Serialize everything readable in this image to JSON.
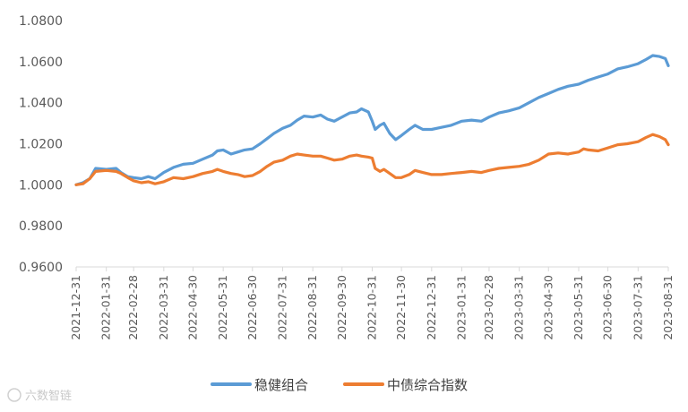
{
  "chart_data": {
    "type": "line",
    "title": "",
    "xlabel": "",
    "ylabel": "",
    "ylim": [
      0.96,
      1.08
    ],
    "yticks": [
      "1.0800",
      "1.0600",
      "1.0400",
      "1.0200",
      "1.0000",
      "0.9800",
      "0.9600"
    ],
    "x_tick_labels": [
      "2021-12-31",
      "2022-01-31",
      "2022-02-28",
      "2022-03-31",
      "2022-04-30",
      "2022-05-31",
      "2022-06-30",
      "2022-07-31",
      "2022-08-31",
      "2022-09-30",
      "2022-10-31",
      "2022-11-30",
      "2022-12-31",
      "2023-01-31",
      "2023-02-28",
      "2023-03-31",
      "2023-04-30",
      "2023-05-31",
      "2023-06-30",
      "2023-07-31",
      "2023-08-31"
    ],
    "legend_position": "bottom",
    "grid": false,
    "series": [
      {
        "name": "稳健组合",
        "color": "#5B9BD5",
        "points": [
          [
            "2021-12-31",
            1.0
          ],
          [
            "2022-01-07",
            1.001
          ],
          [
            "2022-01-14",
            1.003
          ],
          [
            "2022-01-20",
            1.008
          ],
          [
            "2022-01-31",
            1.0075
          ],
          [
            "2022-02-10",
            1.008
          ],
          [
            "2022-02-15",
            1.006
          ],
          [
            "2022-02-22",
            1.004
          ],
          [
            "2022-02-28",
            1.0035
          ],
          [
            "2022-03-08",
            1.003
          ],
          [
            "2022-03-15",
            1.004
          ],
          [
            "2022-03-22",
            1.003
          ],
          [
            "2022-03-31",
            1.006
          ],
          [
            "2022-04-10",
            1.0085
          ],
          [
            "2022-04-20",
            1.01
          ],
          [
            "2022-04-30",
            1.0105
          ],
          [
            "2022-05-10",
            1.0125
          ],
          [
            "2022-05-20",
            1.0145
          ],
          [
            "2022-05-25",
            1.0165
          ],
          [
            "2022-05-31",
            1.017
          ],
          [
            "2022-06-08",
            1.015
          ],
          [
            "2022-06-15",
            1.016
          ],
          [
            "2022-06-22",
            1.017
          ],
          [
            "2022-06-30",
            1.0175
          ],
          [
            "2022-07-08",
            1.02
          ],
          [
            "2022-07-15",
            1.0225
          ],
          [
            "2022-07-22",
            1.025
          ],
          [
            "2022-07-31",
            1.0275
          ],
          [
            "2022-08-08",
            1.029
          ],
          [
            "2022-08-15",
            1.0315
          ],
          [
            "2022-08-22",
            1.0335
          ],
          [
            "2022-08-31",
            1.033
          ],
          [
            "2022-09-08",
            1.034
          ],
          [
            "2022-09-15",
            1.032
          ],
          [
            "2022-09-22",
            1.031
          ],
          [
            "2022-09-30",
            1.033
          ],
          [
            "2022-10-08",
            1.035
          ],
          [
            "2022-10-15",
            1.0355
          ],
          [
            "2022-10-20",
            1.037
          ],
          [
            "2022-10-27",
            1.0355
          ],
          [
            "2022-10-31",
            1.031
          ],
          [
            "2022-11-03",
            1.027
          ],
          [
            "2022-11-08",
            1.029
          ],
          [
            "2022-11-12",
            1.03
          ],
          [
            "2022-11-18",
            1.025
          ],
          [
            "2022-11-24",
            1.022
          ],
          [
            "2022-11-30",
            1.024
          ],
          [
            "2022-12-08",
            1.027
          ],
          [
            "2022-12-14",
            1.029
          ],
          [
            "2022-12-22",
            1.027
          ],
          [
            "2022-12-31",
            1.027
          ],
          [
            "2023-01-10",
            1.028
          ],
          [
            "2023-01-20",
            1.029
          ],
          [
            "2023-01-31",
            1.031
          ],
          [
            "2023-02-10",
            1.0315
          ],
          [
            "2023-02-20",
            1.031
          ],
          [
            "2023-02-28",
            1.033
          ],
          [
            "2023-03-10",
            1.035
          ],
          [
            "2023-03-20",
            1.036
          ],
          [
            "2023-03-31",
            1.0375
          ],
          [
            "2023-04-10",
            1.04
          ],
          [
            "2023-04-20",
            1.0425
          ],
          [
            "2023-04-30",
            1.0445
          ],
          [
            "2023-05-10",
            1.0465
          ],
          [
            "2023-05-20",
            1.048
          ],
          [
            "2023-05-31",
            1.049
          ],
          [
            "2023-06-10",
            1.051
          ],
          [
            "2023-06-20",
            1.0525
          ],
          [
            "2023-06-30",
            1.054
          ],
          [
            "2023-07-10",
            1.0565
          ],
          [
            "2023-07-20",
            1.0575
          ],
          [
            "2023-07-31",
            1.059
          ],
          [
            "2023-08-08",
            1.061
          ],
          [
            "2023-08-15",
            1.063
          ],
          [
            "2023-08-22",
            1.0625
          ],
          [
            "2023-08-28",
            1.0615
          ],
          [
            "2023-08-31",
            1.058
          ]
        ]
      },
      {
        "name": "中债综合指数",
        "color": "#ED7D31",
        "points": [
          [
            "2021-12-31",
            1.0
          ],
          [
            "2022-01-07",
            1.0005
          ],
          [
            "2022-01-14",
            1.003
          ],
          [
            "2022-01-20",
            1.0065
          ],
          [
            "2022-01-31",
            1.007
          ],
          [
            "2022-02-10",
            1.0065
          ],
          [
            "2022-02-15",
            1.0055
          ],
          [
            "2022-02-22",
            1.0035
          ],
          [
            "2022-02-28",
            1.002
          ],
          [
            "2022-03-08",
            1.001
          ],
          [
            "2022-03-15",
            1.0015
          ],
          [
            "2022-03-22",
            1.0005
          ],
          [
            "2022-03-31",
            1.0015
          ],
          [
            "2022-04-10",
            1.0035
          ],
          [
            "2022-04-20",
            1.003
          ],
          [
            "2022-04-30",
            1.004
          ],
          [
            "2022-05-10",
            1.0055
          ],
          [
            "2022-05-20",
            1.0065
          ],
          [
            "2022-05-25",
            1.0075
          ],
          [
            "2022-05-31",
            1.0065
          ],
          [
            "2022-06-08",
            1.0055
          ],
          [
            "2022-06-15",
            1.005
          ],
          [
            "2022-06-22",
            1.004
          ],
          [
            "2022-06-30",
            1.0045
          ],
          [
            "2022-07-08",
            1.0065
          ],
          [
            "2022-07-15",
            1.009
          ],
          [
            "2022-07-22",
            1.011
          ],
          [
            "2022-07-31",
            1.012
          ],
          [
            "2022-08-08",
            1.014
          ],
          [
            "2022-08-15",
            1.015
          ],
          [
            "2022-08-22",
            1.0145
          ],
          [
            "2022-08-31",
            1.014
          ],
          [
            "2022-09-08",
            1.014
          ],
          [
            "2022-09-15",
            1.013
          ],
          [
            "2022-09-22",
            1.012
          ],
          [
            "2022-09-30",
            1.0125
          ],
          [
            "2022-10-08",
            1.014
          ],
          [
            "2022-10-15",
            1.0145
          ],
          [
            "2022-10-20",
            1.014
          ],
          [
            "2022-10-27",
            1.0135
          ],
          [
            "2022-10-31",
            1.013
          ],
          [
            "2022-11-03",
            1.008
          ],
          [
            "2022-11-08",
            1.0065
          ],
          [
            "2022-11-12",
            1.0075
          ],
          [
            "2022-11-18",
            1.0055
          ],
          [
            "2022-11-24",
            1.0035
          ],
          [
            "2022-11-30",
            1.0035
          ],
          [
            "2022-12-08",
            1.005
          ],
          [
            "2022-12-14",
            1.007
          ],
          [
            "2022-12-22",
            1.006
          ],
          [
            "2022-12-31",
            1.005
          ],
          [
            "2023-01-10",
            1.005
          ],
          [
            "2023-01-20",
            1.0055
          ],
          [
            "2023-01-31",
            1.006
          ],
          [
            "2023-02-10",
            1.0065
          ],
          [
            "2023-02-20",
            1.006
          ],
          [
            "2023-02-28",
            1.007
          ],
          [
            "2023-03-10",
            1.008
          ],
          [
            "2023-03-20",
            1.0085
          ],
          [
            "2023-03-31",
            1.009
          ],
          [
            "2023-04-10",
            1.01
          ],
          [
            "2023-04-20",
            1.012
          ],
          [
            "2023-04-30",
            1.015
          ],
          [
            "2023-05-10",
            1.0155
          ],
          [
            "2023-05-20",
            1.015
          ],
          [
            "2023-05-31",
            1.016
          ],
          [
            "2023-06-05",
            1.0175
          ],
          [
            "2023-06-10",
            1.017
          ],
          [
            "2023-06-20",
            1.0165
          ],
          [
            "2023-06-30",
            1.018
          ],
          [
            "2023-07-10",
            1.0195
          ],
          [
            "2023-07-20",
            1.02
          ],
          [
            "2023-07-31",
            1.021
          ],
          [
            "2023-08-08",
            1.023
          ],
          [
            "2023-08-15",
            1.0245
          ],
          [
            "2023-08-22",
            1.0235
          ],
          [
            "2023-08-28",
            1.022
          ],
          [
            "2023-08-31",
            1.0195
          ]
        ]
      }
    ]
  },
  "watermark": "六数智链"
}
